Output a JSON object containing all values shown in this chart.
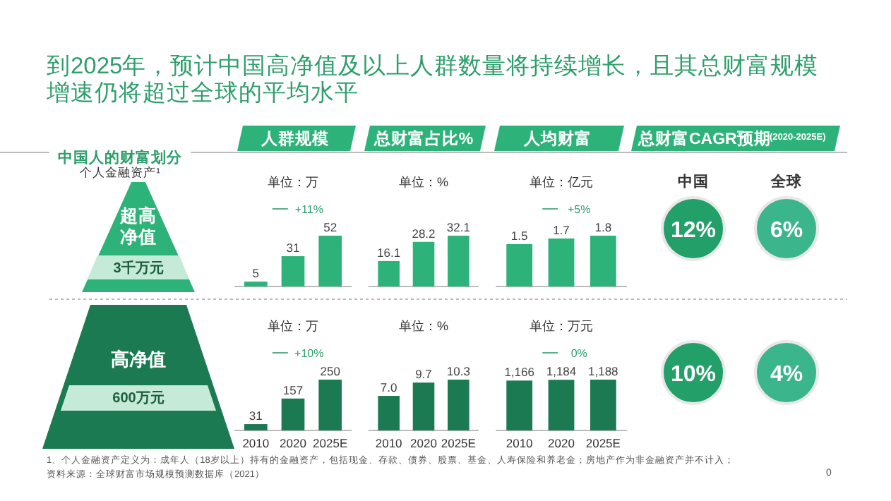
{
  "chart_data": [
    {
      "type": "other",
      "title": "到2025年，预计中国高净值及以上人群数量将持续增长，且其总财富规模增速仍将超过全球的平均水平",
      "annotations": [
        "中国人的财富划分",
        "个人金融资产¹",
        "超高净值",
        "3千万元",
        "高净值",
        "600万元",
        "人群规模",
        "总财富占比%",
        "人均财富",
        "总财富CAGR预期",
        "(2020-2025E)",
        "1、个人金融资产定义为：成年人（18岁以上）持有的金融资产，包括现金、存款、债券、股票、基金、人寿保险和养老金；房地产作为非金融资产并不计入；",
        "资料来源：全球财富市场规模预测数据库（2021）",
        "0"
      ]
    },
    {
      "type": "bar",
      "title": "单位：万",
      "categories": [
        null,
        null,
        null
      ],
      "values": [
        5,
        31,
        52
      ],
      "value_labels": [
        "5",
        "31",
        "52"
      ],
      "color": "#2db37a",
      "annotations": [
        "+11%"
      ]
    },
    {
      "type": "bar",
      "title": "单位：%",
      "categories": [
        null,
        null,
        null
      ],
      "values": [
        16.1,
        28.2,
        32.1
      ],
      "value_labels": [
        "16.1",
        "28.2",
        "32.1"
      ],
      "color": "#2db37a"
    },
    {
      "type": "bar",
      "title": "单位：亿元",
      "categories": [
        null,
        null,
        null
      ],
      "values": [
        1.5,
        1.7,
        1.8
      ],
      "value_labels": [
        "1.5",
        "1.7",
        "1.8"
      ],
      "color": "#2db37a",
      "annotations": [
        "+5%"
      ]
    },
    {
      "type": "other",
      "annotations": [
        "中国",
        "全球",
        "12%",
        "6%"
      ],
      "colors": [
        "#23a06a",
        "#3bb58c"
      ]
    },
    {
      "type": "bar",
      "title": "单位：万",
      "categories": [
        "2010",
        "2020",
        "2025E"
      ],
      "values": [
        31,
        157,
        250
      ],
      "value_labels": [
        "31",
        "157",
        "250"
      ],
      "color": "#1b7a52",
      "annotations": [
        "+10%"
      ]
    },
    {
      "type": "bar",
      "title": "单位：%",
      "categories": [
        "2010",
        "2020",
        "2025E"
      ],
      "values": [
        7.0,
        9.7,
        10.3
      ],
      "value_labels": [
        "7.0",
        "9.7",
        "10.3"
      ],
      "color": "#1b7a52"
    },
    {
      "type": "bar",
      "title": "单位：万元",
      "categories": [
        "2010",
        "2020",
        "2025E"
      ],
      "values": [
        1166,
        1184,
        1188
      ],
      "value_labels": [
        "1,166",
        "1,184",
        "1,188"
      ],
      "color": "#1b7a52",
      "annotations": [
        "0%"
      ]
    },
    {
      "type": "other",
      "annotations": [
        "10%",
        "4%"
      ],
      "colors": [
        "#23a06a",
        "#3bb58c"
      ]
    }
  ]
}
